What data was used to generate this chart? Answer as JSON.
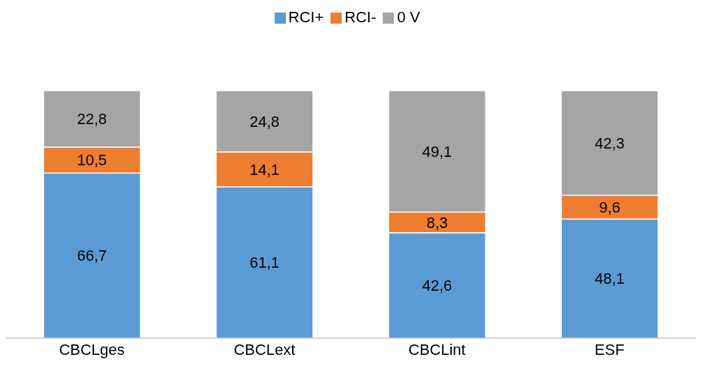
{
  "chart_data": {
    "type": "bar",
    "stacked": true,
    "legend": "top",
    "categories": [
      "CBCLges",
      "CBCLext",
      "CBCLint",
      "ESF"
    ],
    "series": [
      {
        "name": "RCI+",
        "color": "#5b9bd5",
        "values": [
          66.7,
          61.1,
          42.6,
          48.1
        ],
        "value_labels": [
          "66,7",
          "61,1",
          "42,6",
          "48,1"
        ]
      },
      {
        "name": "RCI-",
        "color": "#ed7d31",
        "values": [
          10.5,
          14.1,
          8.3,
          9.6
        ],
        "value_labels": [
          "10,5",
          "14,1",
          "8,3",
          "9,6"
        ]
      },
      {
        "name": "0 V",
        "color": "#a5a5a5",
        "values": [
          22.8,
          24.8,
          49.1,
          42.3
        ],
        "value_labels": [
          "22,8",
          "24,8",
          "49,1",
          "42,3"
        ]
      }
    ]
  }
}
